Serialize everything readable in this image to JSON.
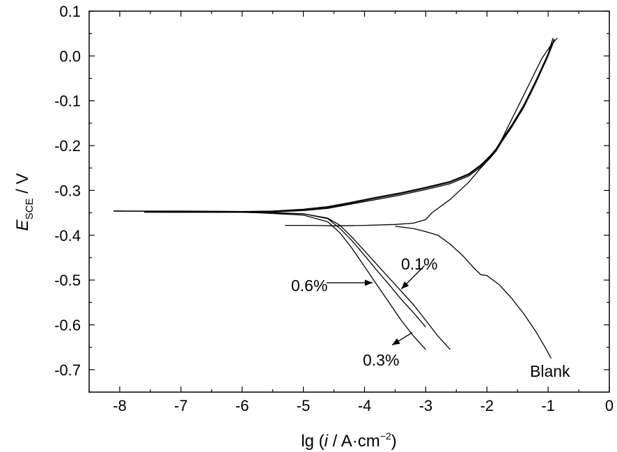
{
  "chart_data": {
    "type": "line",
    "xlabel": "lg (i / A·cm⁻²)",
    "ylabel": "E_SCE / V",
    "xlim": [
      -8.5,
      0
    ],
    "ylim": [
      -0.75,
      0.1
    ],
    "x_ticks": [
      "-8",
      "-7",
      "-6",
      "-5",
      "-4",
      "-3",
      "-2",
      "-1",
      "0"
    ],
    "y_ticks": [
      "0.1",
      "0.0",
      "-0.1",
      "-0.2",
      "-0.3",
      "-0.4",
      "-0.5",
      "-0.6",
      "-0.7"
    ],
    "grid": false,
    "annotations": [
      "0.1%",
      "0.6%",
      "0.3%",
      "Blank"
    ],
    "series": [
      {
        "name": "Blank",
        "branches": [
          {
            "x": [
              -5.3,
              -4.8,
              -4.5,
              -4.0,
              -3.5,
              -3.2,
              -3.0,
              -2.9
            ],
            "y": [
              -0.378,
              -0.378,
              -0.379,
              -0.378,
              -0.376,
              -0.373,
              -0.365,
              -0.35
            ]
          },
          {
            "x": [
              -2.9,
              -2.6,
              -2.3,
              -2.1,
              -1.95,
              -1.85,
              -1.7,
              -1.5,
              -1.3,
              -1.1,
              -0.95,
              -0.85
            ],
            "y": [
              -0.35,
              -0.32,
              -0.282,
              -0.25,
              -0.228,
              -0.212,
              -0.17,
              -0.115,
              -0.06,
              -0.005,
              0.025,
              0.04
            ]
          },
          {
            "x": [
              -3.5,
              -3.2,
              -3.0,
              -2.8,
              -2.6,
              -2.4,
              -2.2,
              -2.1,
              -2.0,
              -1.8,
              -1.6,
              -1.4,
              -1.2,
              -1.05,
              -0.95
            ],
            "y": [
              -0.38,
              -0.385,
              -0.392,
              -0.4,
              -0.42,
              -0.445,
              -0.475,
              -0.488,
              -0.49,
              -0.51,
              -0.54,
              -0.575,
              -0.615,
              -0.65,
              -0.675
            ]
          }
        ]
      },
      {
        "name": "0.1%",
        "branches": [
          {
            "x": [
              -7.6,
              -7.0,
              -6.0,
              -5.5,
              -5.0,
              -4.6,
              -4.2,
              -3.8,
              -3.4,
              -3.0,
              -2.6,
              -2.3,
              -2.1,
              -1.95,
              -1.85,
              -1.75,
              -1.6,
              -1.4,
              -1.2,
              -1.0,
              -0.9
            ],
            "y": [
              -0.349,
              -0.349,
              -0.349,
              -0.348,
              -0.345,
              -0.34,
              -0.33,
              -0.32,
              -0.31,
              -0.298,
              -0.285,
              -0.268,
              -0.248,
              -0.228,
              -0.212,
              -0.19,
              -0.16,
              -0.115,
              -0.06,
              0.0,
              0.035
            ]
          },
          {
            "x": [
              -7.6,
              -6.0,
              -5.0,
              -4.6,
              -4.4,
              -4.2,
              -4.0,
              -3.8,
              -3.6,
              -3.4,
              -3.2,
              -3.0,
              -2.8,
              -2.6
            ],
            "y": [
              -0.349,
              -0.349,
              -0.352,
              -0.362,
              -0.378,
              -0.405,
              -0.435,
              -0.465,
              -0.495,
              -0.525,
              -0.555,
              -0.59,
              -0.625,
              -0.655
            ]
          }
        ]
      },
      {
        "name": "0.6%",
        "branches": [
          {
            "x": [
              -8.1,
              -7.0,
              -6.0,
              -5.5,
              -5.0,
              -4.6,
              -4.2,
              -3.8,
              -3.4,
              -3.0,
              -2.6,
              -2.3,
              -2.1,
              -1.95,
              -1.85,
              -1.75,
              -1.6,
              -1.4,
              -1.2,
              -1.0,
              -0.92
            ],
            "y": [
              -0.346,
              -0.346,
              -0.347,
              -0.346,
              -0.342,
              -0.336,
              -0.326,
              -0.315,
              -0.305,
              -0.293,
              -0.28,
              -0.263,
              -0.243,
              -0.223,
              -0.207,
              -0.185,
              -0.155,
              -0.11,
              -0.055,
              0.005,
              0.04
            ]
          },
          {
            "x": [
              -8.1,
              -6.0,
              -5.0,
              -4.6,
              -4.4,
              -4.2,
              -4.0,
              -3.8,
              -3.6,
              -3.4,
              -3.2,
              -3.0
            ],
            "y": [
              -0.346,
              -0.347,
              -0.352,
              -0.363,
              -0.385,
              -0.413,
              -0.445,
              -0.478,
              -0.51,
              -0.543,
              -0.573,
              -0.605
            ]
          }
        ]
      },
      {
        "name": "0.3%",
        "branches": [
          {
            "x": [
              -8.1,
              -7.0,
              -6.0,
              -5.5,
              -5.0,
              -4.6,
              -4.2,
              -3.8,
              -3.4,
              -3.0,
              -2.6,
              -2.3,
              -2.1,
              -1.95,
              -1.85,
              -1.75,
              -1.6,
              -1.4,
              -1.2,
              -1.0,
              -0.9
            ],
            "y": [
              -0.346,
              -0.347,
              -0.348,
              -0.347,
              -0.344,
              -0.338,
              -0.328,
              -0.317,
              -0.307,
              -0.295,
              -0.282,
              -0.265,
              -0.245,
              -0.225,
              -0.21,
              -0.188,
              -0.158,
              -0.112,
              -0.058,
              0.002,
              0.038
            ]
          },
          {
            "x": [
              -8.1,
              -6.0,
              -5.0,
              -4.6,
              -4.4,
              -4.2,
              -4.0,
              -3.8,
              -3.6,
              -3.4,
              -3.2,
              -3.0
            ],
            "y": [
              -0.346,
              -0.348,
              -0.355,
              -0.37,
              -0.395,
              -0.43,
              -0.47,
              -0.51,
              -0.55,
              -0.59,
              -0.625,
              -0.655
            ]
          }
        ]
      }
    ]
  }
}
